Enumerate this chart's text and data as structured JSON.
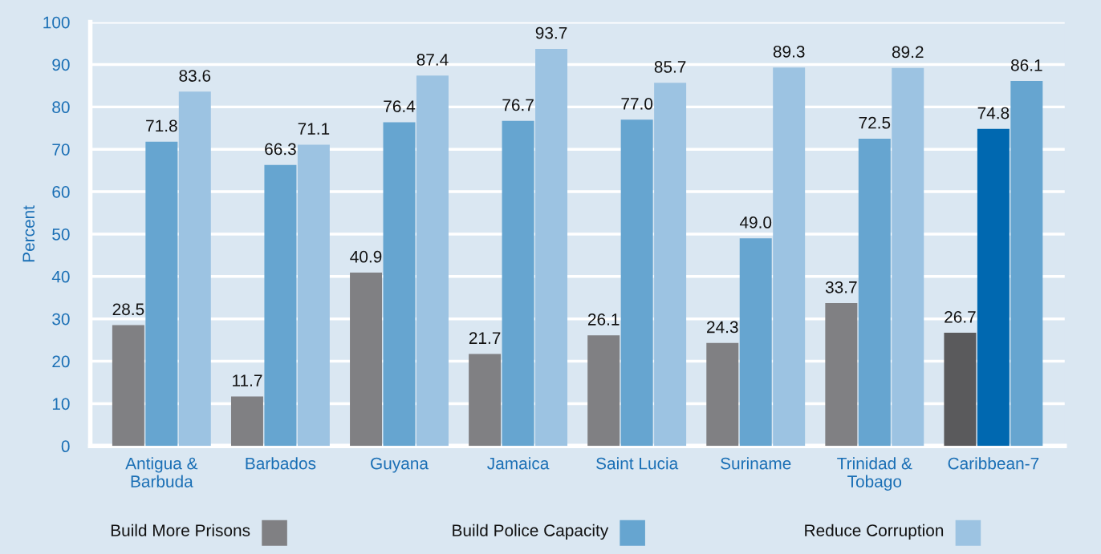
{
  "chart_data": {
    "type": "bar",
    "ylabel": "Percent",
    "categories": [
      "Antigua &\nBarbuda",
      "Barbados",
      "Guyana",
      "Jamaica",
      "Saint Lucia",
      "Suriname",
      "Trinidad &\nTobago",
      "Caribbean-7"
    ],
    "series": [
      {
        "name": "Build More Prisons",
        "color": "#808083",
        "colors": [
          "#808083",
          "#808083",
          "#808083",
          "#808083",
          "#808083",
          "#808083",
          "#808083",
          "#5a5a5c"
        ],
        "values": [
          28.5,
          11.7,
          40.9,
          21.7,
          26.1,
          24.3,
          33.7,
          26.7
        ],
        "value_labels": [
          "28.5",
          "11.7",
          "40.9",
          "21.7",
          "26.1",
          "24.3",
          "33.7",
          "26.7"
        ]
      },
      {
        "name": "Build Police Capacity",
        "color": "#66a5d0",
        "colors": [
          "#66a5d0",
          "#66a5d0",
          "#66a5d0",
          "#66a5d0",
          "#66a5d0",
          "#66a5d0",
          "#66a5d0",
          "#0068b0"
        ],
        "values": [
          71.8,
          66.3,
          76.4,
          76.7,
          77.0,
          49.0,
          72.5,
          74.8
        ],
        "value_labels": [
          "71.8",
          "66.3",
          "76.4",
          "76.7",
          "77.0",
          "49.0",
          "72.5",
          "74.8"
        ]
      },
      {
        "name": "Reduce Corruption",
        "color": "#9cc3e2",
        "colors": [
          "#9cc3e2",
          "#9cc3e2",
          "#9cc3e2",
          "#9cc3e2",
          "#9cc3e2",
          "#9cc3e2",
          "#9cc3e2",
          "#66a5d0"
        ],
        "values": [
          83.6,
          71.1,
          87.4,
          93.7,
          85.7,
          89.3,
          89.2,
          86.1
        ],
        "value_labels": [
          "83.6",
          "71.1",
          "87.4",
          "93.7",
          "85.7",
          "89.3",
          "89.2",
          "86.1"
        ]
      }
    ],
    "ylim": [
      0,
      100
    ],
    "yticks": [
      0,
      10,
      20,
      30,
      40,
      50,
      60,
      70,
      80,
      90,
      100
    ],
    "grid": "y",
    "legend": "bottom"
  }
}
